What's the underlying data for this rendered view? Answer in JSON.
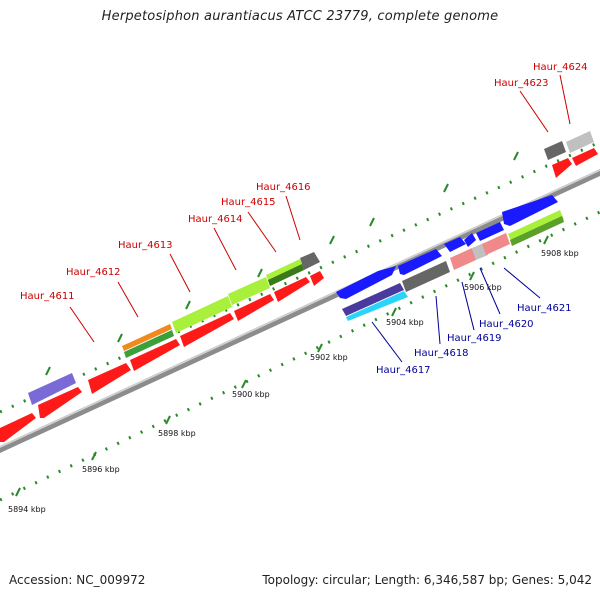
{
  "title": "Herpetosiphon aurantiacus ATCC 23779, complete genome",
  "footer": {
    "accession": "Accession: NC_009972",
    "topology": "Topology: circular; Length: 6,346,587 bp; Genes: 5,042"
  },
  "colors": {
    "forward_label": "#cc0000",
    "reverse_label": "#000099",
    "backbone": "#8c8c8c",
    "tick": "#2a8a2a",
    "cds_forward": "#ff1a1a",
    "cds_reverse": "#1a1aff",
    "cds_light_green": "#a8f03c",
    "cds_dark_green": "#3a7a1a",
    "cds_gray": "#666666",
    "cds_light_gray": "#c0c0c0",
    "cds_pink": "#f08a8a",
    "cds_purple": "#7a6ad8",
    "cds_orange": "#f08a1e",
    "cds_cyan": "#2ad4f8",
    "cds_indigo": "#4a3aa0"
  },
  "scale_labels": [
    "5894 kbp",
    "5896 kbp",
    "5898 kbp",
    "5900 kbp",
    "5902 kbp",
    "5904 kbp",
    "5906 kbp",
    "5908 kbp"
  ],
  "forward_gene_labels": [
    "Haur_4611",
    "Haur_4612",
    "Haur_4613",
    "Haur_4614",
    "Haur_4615",
    "Haur_4616",
    "Haur_4623",
    "Haur_4624"
  ],
  "reverse_gene_labels": [
    "Haur_4617",
    "Haur_4618",
    "Haur_4619",
    "Haur_4620",
    "Haur_4621"
  ]
}
